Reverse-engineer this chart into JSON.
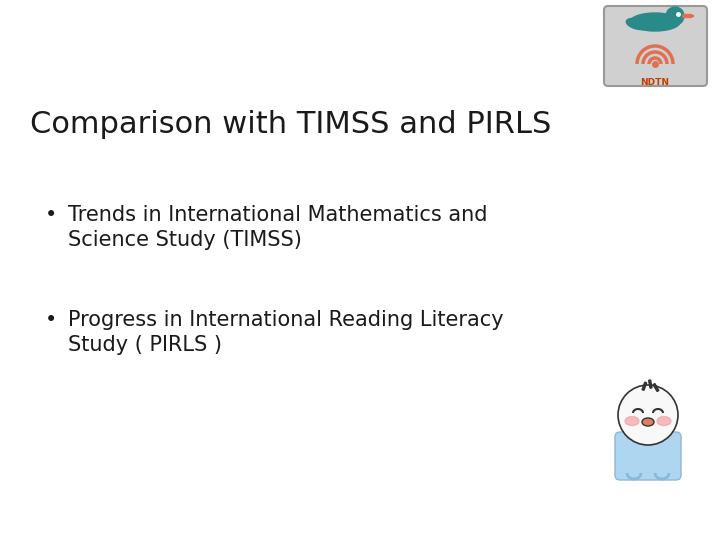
{
  "title": "Comparison with TIMSS and PIRLS",
  "bullet1_line1": "Trends in International Mathematics and",
  "bullet1_line2": "Science Study (TIMSS)",
  "bullet2_line1": "Progress in International Reading Literacy",
  "bullet2_line2": "Study ( PIRLS )",
  "background_color": "#ffffff",
  "title_color": "#1a1a1a",
  "bullet_color": "#1a1a1a",
  "title_fontsize": 22,
  "bullet_fontsize": 15,
  "bullet_symbol": "•",
  "logo_border_color": "#999999",
  "logo_bg_color": "#d0d0d0",
  "logo_bird_color": "#2a8a8a",
  "logo_arc_color1": "#e07050",
  "logo_arc_color2": "#e07050",
  "logo_text": "NDTN",
  "logo_text_color": "#c04000"
}
